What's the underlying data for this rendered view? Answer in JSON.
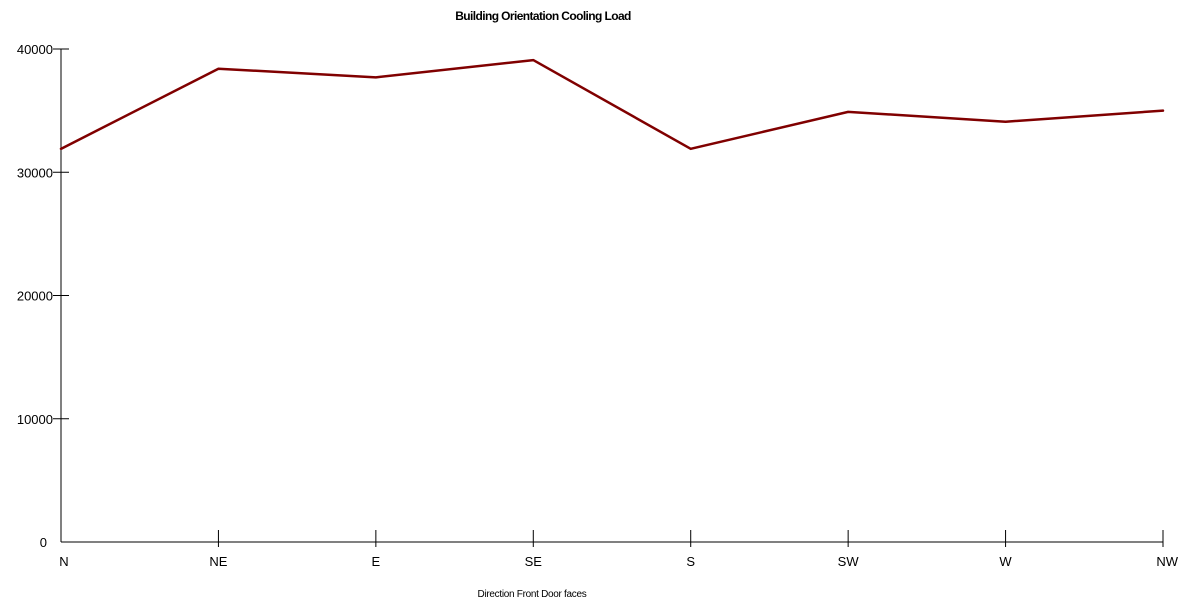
{
  "chart_data": {
    "type": "line",
    "title": "Building Orientation Cooling Load",
    "xlabel": "Direction Front Door faces",
    "ylabel": "",
    "categories": [
      "N",
      "NE",
      "E",
      "SE",
      "S",
      "SW",
      "W",
      "NW"
    ],
    "series": [
      {
        "values": [
          31900,
          38400,
          37700,
          39100,
          31900,
          34900,
          34100,
          35000
        ],
        "color": "#800000"
      }
    ],
    "ylim": [
      0,
      40000
    ],
    "yticks": [
      0,
      10000,
      20000,
      30000,
      40000
    ],
    "grid": false,
    "legend": "none"
  }
}
